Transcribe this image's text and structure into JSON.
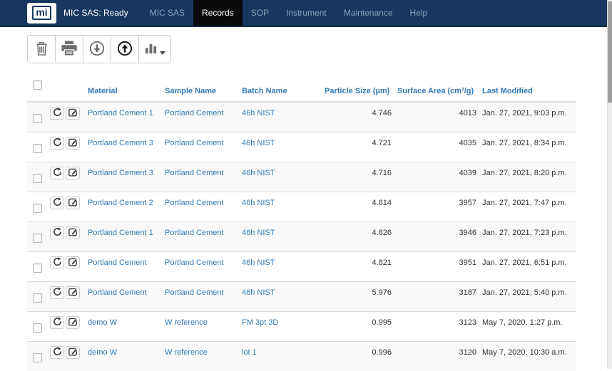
{
  "navbar": {
    "logo_text": "mi",
    "brand": "MIC SAS: Ready",
    "items": [
      {
        "label": "MIC SAS",
        "active": false
      },
      {
        "label": "Records",
        "active": true
      },
      {
        "label": "SOP",
        "active": false
      },
      {
        "label": "Instrument",
        "active": false
      },
      {
        "label": "Maintenance",
        "active": false
      },
      {
        "label": "Help",
        "active": false
      }
    ]
  },
  "toolbar": {
    "buttons": [
      {
        "name": "delete",
        "icon": "trash-icon"
      },
      {
        "name": "print",
        "icon": "printer-icon"
      },
      {
        "name": "download",
        "icon": "download-circle-icon"
      },
      {
        "name": "upload",
        "icon": "upload-circle-icon"
      },
      {
        "name": "chart",
        "icon": "bar-chart-icon",
        "has_dropdown": true
      }
    ]
  },
  "table": {
    "columns": [
      "Material",
      "Sample Name",
      "Batch Name",
      "Particle Size (µm)",
      "Surface Area (cm²/g)",
      "Last Modified"
    ],
    "row_action_icons": [
      "repeat-icon",
      "edit-icon"
    ],
    "rows": [
      {
        "material": "Portland Cement 1",
        "sample": "Portland Cement",
        "batch": "46h NIST",
        "particle_size": "4.746",
        "surface_area": "4013",
        "last_modified": "Jan. 27, 2021, 9:03 p.m."
      },
      {
        "material": "Portland Cement 3",
        "sample": "Portland Cement",
        "batch": "46h NIST",
        "particle_size": "4.721",
        "surface_area": "4035",
        "last_modified": "Jan. 27, 2021, 8:34 p.m."
      },
      {
        "material": "Portland Cement 3",
        "sample": "Portland Cement",
        "batch": "46h NIST",
        "particle_size": "4.716",
        "surface_area": "4039",
        "last_modified": "Jan. 27, 2021, 8:20 p.m."
      },
      {
        "material": "Portland Cement 2",
        "sample": "Portland Cement",
        "batch": "46h NIST",
        "particle_size": "4.814",
        "surface_area": "3957",
        "last_modified": "Jan. 27, 2021, 7:47 p.m."
      },
      {
        "material": "Portland Cement 1",
        "sample": "Portland Cement",
        "batch": "46h NIST",
        "particle_size": "4.826",
        "surface_area": "3946",
        "last_modified": "Jan. 27, 2021, 7:23 p.m."
      },
      {
        "material": "Portland Cement",
        "sample": "Portland Cement",
        "batch": "46h NIST",
        "particle_size": "4.821",
        "surface_area": "3951",
        "last_modified": "Jan. 27, 2021, 6:51 p.m."
      },
      {
        "material": "Portland Cement",
        "sample": "Portland Cement",
        "batch": "46h NIST",
        "particle_size": "5.976",
        "surface_area": "3187",
        "last_modified": "Jan. 27, 2021, 5:40 p.m."
      },
      {
        "material": "demo W",
        "sample": "W reference",
        "batch": "FM 3pt 3D",
        "particle_size": "0.995",
        "surface_area": "3123",
        "last_modified": "May 7, 2020, 1:27 p.m."
      },
      {
        "material": "demo W",
        "sample": "W reference",
        "batch": "lot 1",
        "particle_size": "0.996",
        "surface_area": "3120",
        "last_modified": "May 7, 2020, 10:30 a.m."
      }
    ]
  },
  "colors": {
    "navbar_bg": "#17375e",
    "navbar_border": "#102a49",
    "active_item_bg": "#0a0a0a",
    "nav_link": "#8ba0b9",
    "link_blue": "#337ab7",
    "row_stripe": "#f9f9f9",
    "table_border": "#dddddd",
    "icon_gray": "#6d6d6d",
    "icon_dark": "#191919",
    "body_text": "#333333"
  }
}
